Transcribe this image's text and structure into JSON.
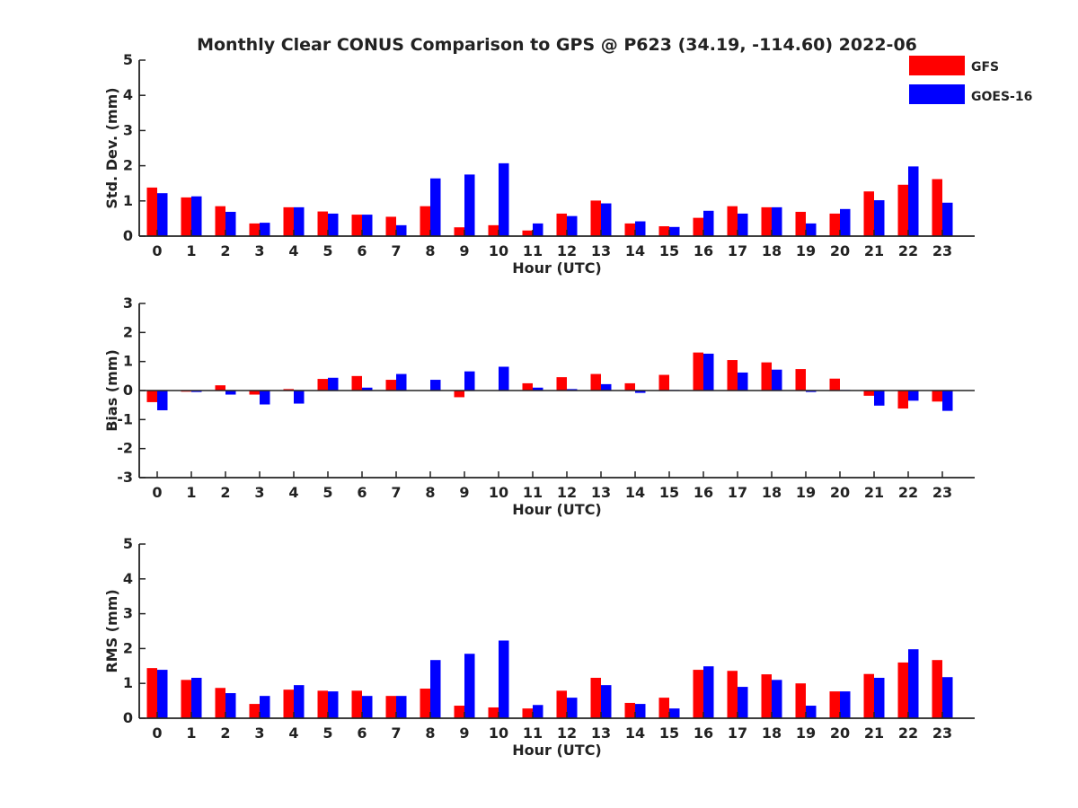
{
  "title": "Monthly Clear CONUS Comparison to GPS @ P623 (34.19, -114.60) 2022-06",
  "legend": [
    {
      "name": "GFS",
      "color": "#ff0000"
    },
    {
      "name": "GOES-16",
      "color": "#0000ff"
    }
  ],
  "chart_data": [
    {
      "type": "bar",
      "xlabel": "Hour (UTC)",
      "ylabel": "Std. Dev. (mm)",
      "ylim": [
        0,
        5
      ],
      "yticks": [
        0,
        1,
        2,
        3,
        4,
        5
      ],
      "categories": [
        "0",
        "1",
        "2",
        "3",
        "4",
        "5",
        "6",
        "7",
        "8",
        "9",
        "10",
        "11",
        "12",
        "13",
        "14",
        "15",
        "16",
        "17",
        "18",
        "19",
        "20",
        "21",
        "22",
        "23"
      ],
      "series": [
        {
          "name": "GFS",
          "color": "#ff0000",
          "values": [
            1.38,
            1.1,
            0.85,
            0.36,
            0.82,
            0.7,
            0.61,
            0.55,
            0.85,
            0.25,
            0.31,
            0.16,
            0.64,
            1.01,
            0.36,
            0.28,
            0.52,
            0.85,
            0.82,
            0.69,
            0.64,
            1.27,
            1.46,
            1.62
          ]
        },
        {
          "name": "GOES-16",
          "color": "#0000ff",
          "values": [
            1.22,
            1.13,
            0.69,
            0.38,
            0.82,
            0.64,
            0.61,
            0.31,
            1.64,
            1.75,
            2.07,
            0.36,
            0.57,
            0.93,
            0.42,
            0.26,
            0.72,
            0.64,
            0.82,
            0.36,
            0.77,
            1.02,
            1.98,
            0.95
          ]
        }
      ]
    },
    {
      "type": "bar",
      "xlabel": "Hour (UTC)",
      "ylabel": "Bias (mm)",
      "ylim": [
        -3,
        3
      ],
      "yticks": [
        -3,
        -2,
        -1,
        0,
        1,
        2,
        3
      ],
      "zero_line": true,
      "categories": [
        "0",
        "1",
        "2",
        "3",
        "4",
        "5",
        "6",
        "7",
        "8",
        "9",
        "10",
        "11",
        "12",
        "13",
        "14",
        "15",
        "16",
        "17",
        "18",
        "19",
        "20",
        "21",
        "22",
        "23"
      ],
      "series": [
        {
          "name": "GFS",
          "color": "#ff0000",
          "values": [
            -0.4,
            -0.04,
            0.18,
            -0.14,
            0.05,
            0.4,
            0.5,
            0.37,
            0.0,
            -0.23,
            0.0,
            0.25,
            0.46,
            0.57,
            0.25,
            0.54,
            1.31,
            1.05,
            0.97,
            0.74,
            0.41,
            -0.18,
            -0.62,
            -0.38
          ]
        },
        {
          "name": "GOES-16",
          "color": "#0000ff",
          "values": [
            -0.68,
            -0.05,
            -0.14,
            -0.48,
            -0.45,
            0.44,
            0.1,
            0.57,
            0.37,
            0.66,
            0.82,
            0.1,
            0.05,
            0.22,
            -0.08,
            0.02,
            1.27,
            0.62,
            0.72,
            -0.05,
            0.02,
            -0.52,
            -0.35,
            -0.7
          ]
        }
      ]
    },
    {
      "type": "bar",
      "xlabel": "Hour (UTC)",
      "ylabel": "RMS (mm)",
      "ylim": [
        0,
        5
      ],
      "yticks": [
        0,
        1,
        2,
        3,
        4,
        5
      ],
      "categories": [
        "0",
        "1",
        "2",
        "3",
        "4",
        "5",
        "6",
        "7",
        "8",
        "9",
        "10",
        "11",
        "12",
        "13",
        "14",
        "15",
        "16",
        "17",
        "18",
        "19",
        "20",
        "21",
        "22",
        "23"
      ],
      "series": [
        {
          "name": "GFS",
          "color": "#ff0000",
          "values": [
            1.44,
            1.1,
            0.87,
            0.41,
            0.82,
            0.79,
            0.79,
            0.64,
            0.85,
            0.36,
            0.31,
            0.28,
            0.79,
            1.16,
            0.44,
            0.59,
            1.39,
            1.36,
            1.26,
            1.0,
            0.77,
            1.27,
            1.6,
            1.67
          ]
        },
        {
          "name": "GOES-16",
          "color": "#0000ff",
          "values": [
            1.39,
            1.16,
            0.72,
            0.64,
            0.95,
            0.77,
            0.64,
            0.64,
            1.67,
            1.85,
            2.23,
            0.38,
            0.59,
            0.95,
            0.41,
            0.28,
            1.49,
            0.9,
            1.1,
            0.36,
            0.77,
            1.16,
            1.98,
            1.18
          ]
        }
      ]
    }
  ]
}
